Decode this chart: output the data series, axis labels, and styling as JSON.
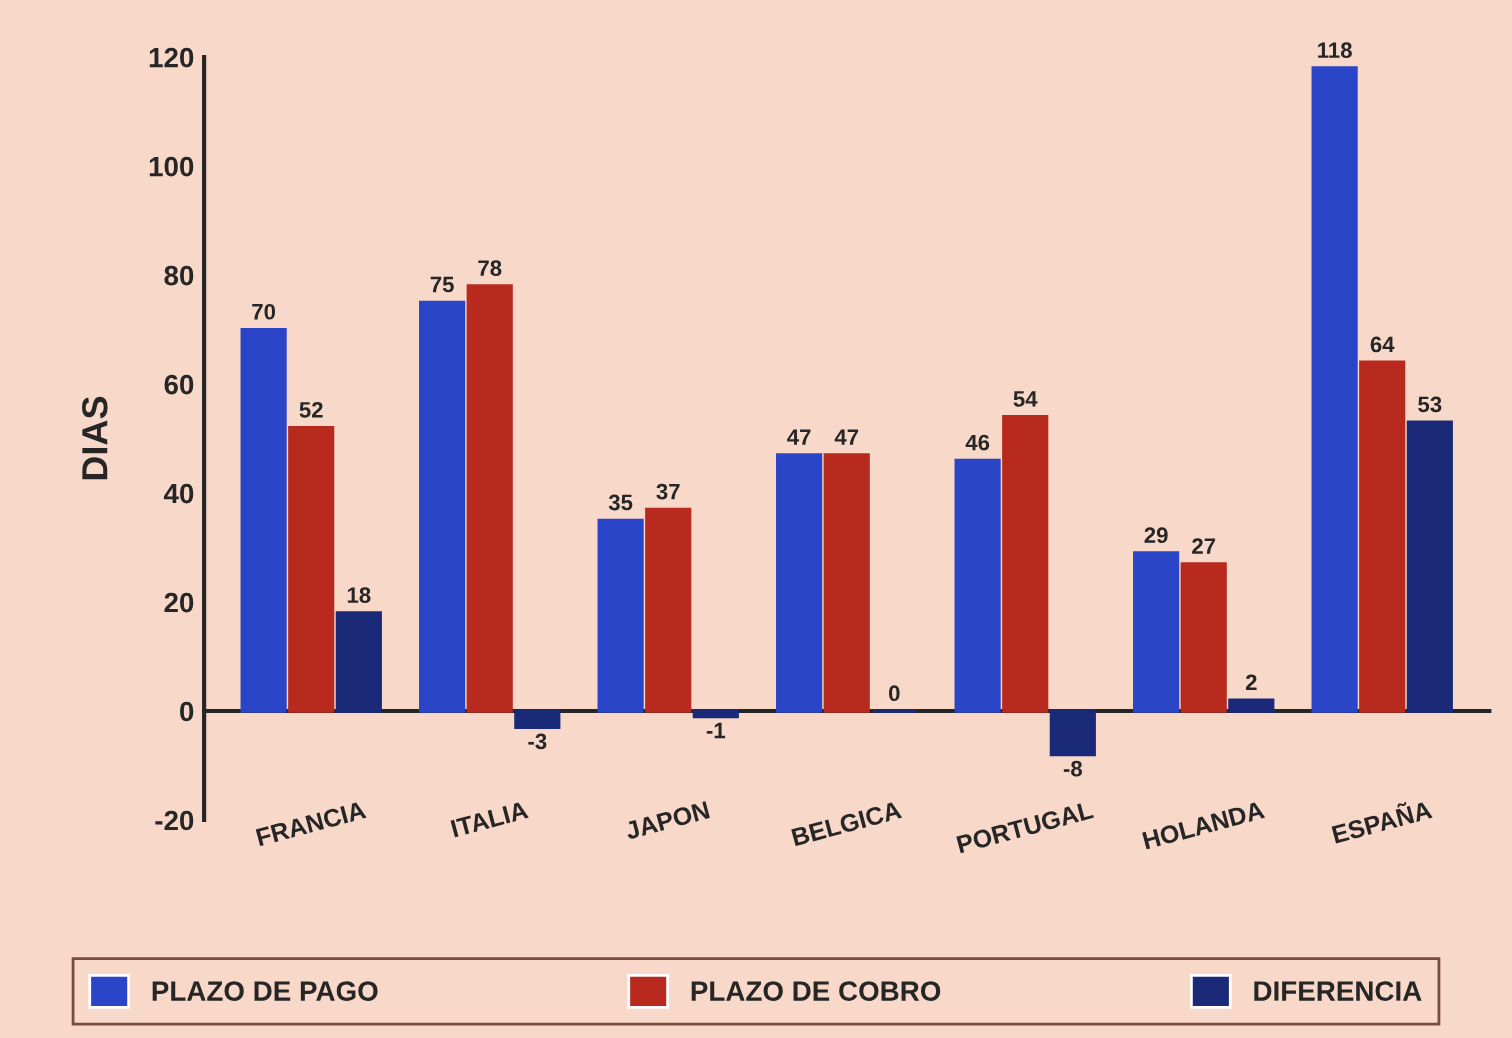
{
  "chart_data": {
    "type": "bar",
    "ylabel": "DIAS",
    "categories": [
      "FRANCIA",
      "ITALIA",
      "JAPON",
      "BELGICA",
      "PORTUGAL",
      "HOLANDA",
      "ESPAÑA"
    ],
    "series": [
      {
        "name": "PLAZO DE PAGO",
        "color": "#2a45c8",
        "values": [
          70,
          75,
          35,
          47,
          46,
          29,
          118
        ]
      },
      {
        "name": "PLAZO DE COBRO",
        "color": "#b82a1e",
        "values": [
          52,
          78,
          37,
          47,
          54,
          27,
          64
        ]
      },
      {
        "name": "DIFERENCIA",
        "color": "#1a2a78",
        "values": [
          18,
          -3,
          -1,
          0,
          -8,
          2,
          53
        ]
      }
    ],
    "ylim": [
      -20,
      120
    ],
    "yticks": [
      -20,
      0,
      20,
      40,
      60,
      80,
      100,
      120
    ],
    "data_labels": true,
    "legend": "bottom"
  }
}
